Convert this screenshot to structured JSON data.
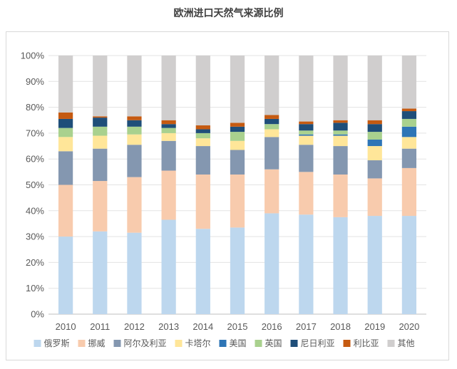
{
  "chart_data": {
    "type": "bar",
    "stacked": true,
    "title": "欧洲进口天然气来源比例",
    "xlabel": "",
    "ylabel": "",
    "ylim": [
      0,
      100
    ],
    "yticks": [
      "0%",
      "10%",
      "20%",
      "30%",
      "40%",
      "50%",
      "60%",
      "70%",
      "80%",
      "90%",
      "100%"
    ],
    "grid": true,
    "legend_position": "bottom",
    "categories": [
      "2010",
      "2011",
      "2012",
      "2013",
      "2014",
      "2015",
      "2016",
      "2017",
      "2018",
      "2019",
      "2020"
    ],
    "series": [
      {
        "name": "俄罗斯",
        "color": "#bdd7ee",
        "values": [
          30,
          32,
          31.5,
          36.5,
          33,
          33.5,
          39,
          38.5,
          37.5,
          38,
          38
        ]
      },
      {
        "name": "挪威",
        "color": "#f8cbad",
        "values": [
          20,
          19.5,
          21.5,
          19,
          21,
          20.5,
          17,
          16.5,
          16.5,
          14.5,
          18.5
        ]
      },
      {
        "name": "阿尔及利亚",
        "color": "#8497b0",
        "values": [
          13,
          12.5,
          12.5,
          11.5,
          11,
          9.5,
          12.5,
          10.5,
          11,
          7,
          7.5
        ]
      },
      {
        "name": "卡塔尔",
        "color": "#ffe699",
        "values": [
          5.5,
          5,
          4,
          3,
          3,
          3.5,
          3,
          3.5,
          4,
          5.5,
          4.5
        ]
      },
      {
        "name": "美国",
        "color": "#2e75b6",
        "values": [
          0,
          0,
          0,
          0,
          0,
          0,
          0,
          0.5,
          0.5,
          2.5,
          4
        ]
      },
      {
        "name": "英国",
        "color": "#a9d18e",
        "values": [
          3.5,
          3.5,
          3,
          2,
          2,
          3.5,
          2,
          1.5,
          1.5,
          3,
          3
        ]
      },
      {
        "name": "尼日利亚",
        "color": "#1f4e79",
        "values": [
          3.5,
          3.5,
          2.5,
          1.5,
          1.5,
          2,
          2,
          2.5,
          3,
          3,
          3
        ]
      },
      {
        "name": "利比亚",
        "color": "#c55a11",
        "values": [
          2.5,
          0.5,
          1.5,
          1.5,
          1.5,
          1.5,
          1.5,
          1,
          1,
          1.5,
          1
        ]
      },
      {
        "name": "其他",
        "color": "#d0cece",
        "values": [
          22,
          23.5,
          23.5,
          25,
          27,
          26,
          23,
          25.5,
          25,
          25,
          20.5
        ]
      }
    ]
  }
}
